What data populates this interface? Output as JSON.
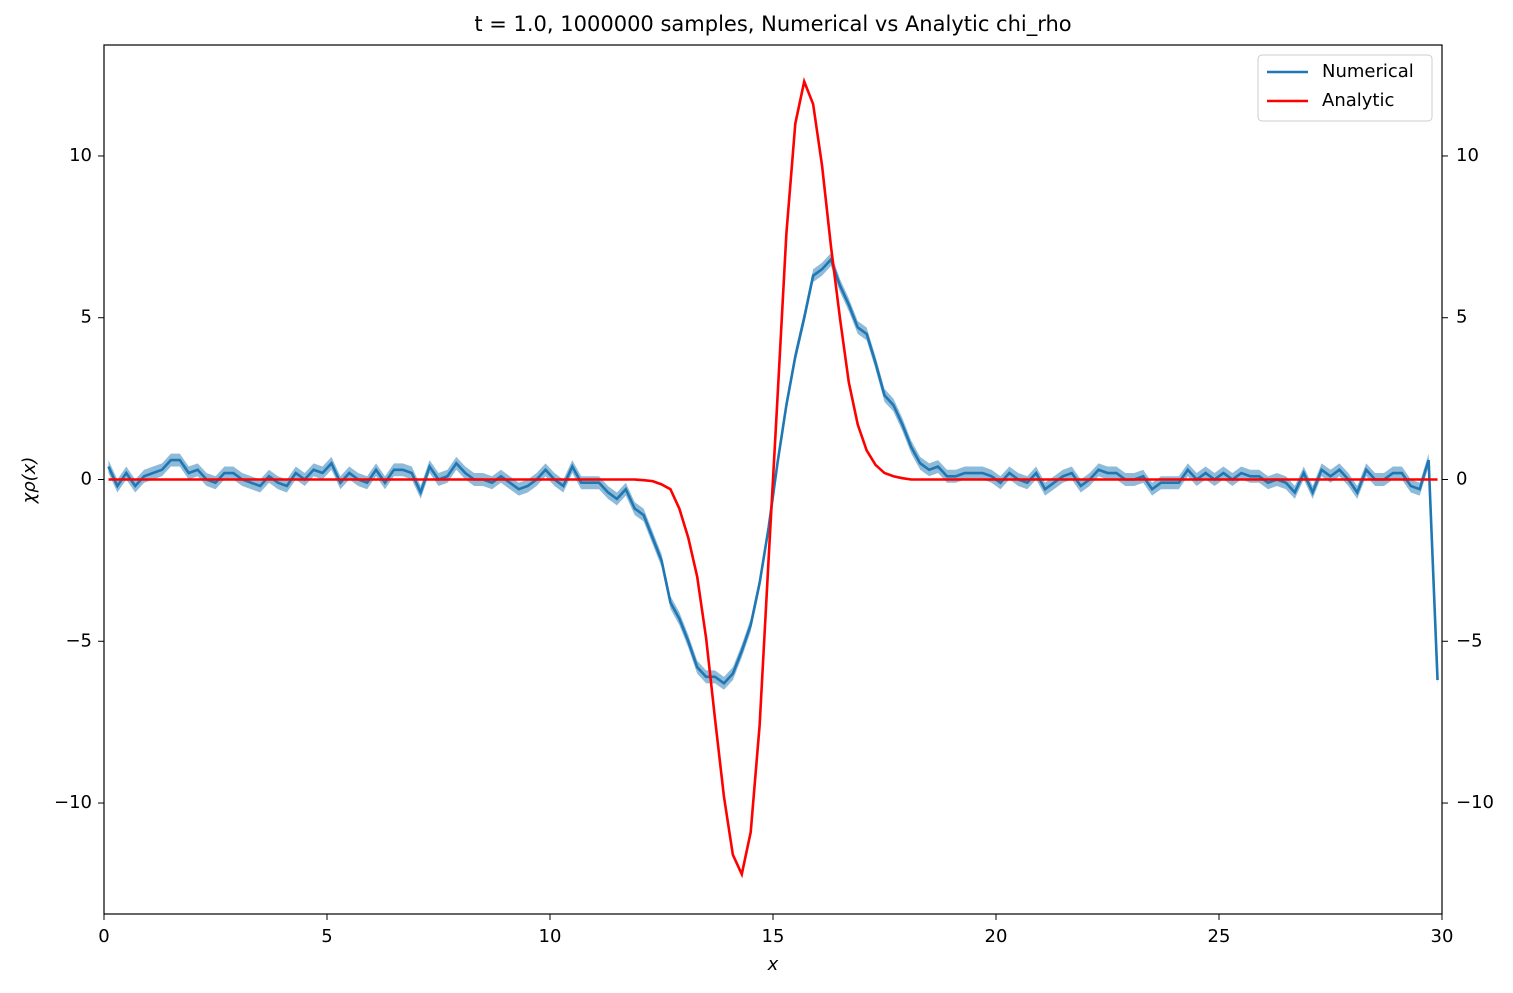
{
  "chart_data": {
    "type": "line",
    "title": "t = 1.0, 1000000 samples, Numerical vs Analytic chi_rho",
    "xlabel": "x",
    "ylabel": "χρ(x)",
    "x": [
      0.1,
      0.3,
      0.5,
      0.7,
      0.9,
      1.1,
      1.3,
      1.5,
      1.7,
      1.9,
      2.1,
      2.3,
      2.5,
      2.7,
      2.9,
      3.1,
      3.3,
      3.5,
      3.7,
      3.9,
      4.1,
      4.3,
      4.5,
      4.7,
      4.9,
      5.1,
      5.3,
      5.5,
      5.7,
      5.9,
      6.1,
      6.3,
      6.5,
      6.7,
      6.9,
      7.1,
      7.3,
      7.5,
      7.7,
      7.9,
      8.1,
      8.3,
      8.5,
      8.7,
      8.9,
      9.1,
      9.3,
      9.5,
      9.7,
      9.9,
      10.1,
      10.3,
      10.5,
      10.7,
      10.9,
      11.1,
      11.3,
      11.5,
      11.7,
      11.9,
      12.1,
      12.3,
      12.5,
      12.7,
      12.9,
      13.1,
      13.3,
      13.5,
      13.7,
      13.9,
      14.1,
      14.3,
      14.5,
      14.7,
      14.9,
      15.1,
      15.3,
      15.5,
      15.7,
      15.9,
      16.1,
      16.3,
      16.5,
      16.7,
      16.9,
      17.1,
      17.3,
      17.5,
      17.7,
      17.9,
      18.1,
      18.3,
      18.5,
      18.7,
      18.9,
      19.1,
      19.3,
      19.5,
      19.7,
      19.9,
      20.1,
      20.3,
      20.5,
      20.7,
      20.9,
      21.1,
      21.3,
      21.5,
      21.7,
      21.9,
      22.1,
      22.3,
      22.5,
      22.7,
      22.9,
      23.1,
      23.3,
      23.5,
      23.7,
      23.9,
      24.1,
      24.3,
      24.5,
      24.7,
      24.9,
      25.1,
      25.3,
      25.5,
      25.7,
      25.9,
      26.1,
      26.3,
      26.5,
      26.7,
      26.9,
      27.1,
      27.3,
      27.5,
      27.7,
      27.9,
      28.1,
      28.3,
      28.5,
      28.7,
      28.9,
      29.1,
      29.3,
      29.5,
      29.7,
      29.9
    ],
    "series": [
      {
        "name": "Numerical",
        "color": "#1f77b4",
        "band_color": "#1f77b4",
        "error": 0.2,
        "values": [
          0.4,
          -0.2,
          0.2,
          -0.2,
          0.1,
          0.2,
          0.3,
          0.6,
          0.6,
          0.2,
          0.3,
          0.0,
          -0.1,
          0.2,
          0.2,
          0.0,
          -0.1,
          -0.2,
          0.1,
          -0.1,
          -0.2,
          0.2,
          0.0,
          0.3,
          0.2,
          0.5,
          -0.1,
          0.2,
          0.0,
          -0.1,
          0.3,
          -0.1,
          0.3,
          0.3,
          0.2,
          -0.4,
          0.4,
          0.0,
          0.1,
          0.5,
          0.2,
          0.0,
          0.0,
          -0.1,
          0.1,
          -0.1,
          -0.3,
          -0.2,
          0.0,
          0.3,
          0.0,
          -0.2,
          0.4,
          -0.1,
          -0.1,
          -0.1,
          -0.4,
          -0.6,
          -0.3,
          -0.9,
          -1.1,
          -1.8,
          -2.5,
          -3.8,
          -4.3,
          -5.0,
          -5.8,
          -6.1,
          -6.1,
          -6.3,
          -6.0,
          -5.3,
          -4.5,
          -3.2,
          -1.5,
          0.5,
          2.3,
          3.8,
          5.0,
          6.3,
          6.5,
          6.8,
          6.0,
          5.4,
          4.7,
          4.5,
          3.6,
          2.6,
          2.3,
          1.7,
          1.0,
          0.5,
          0.3,
          0.4,
          0.1,
          0.1,
          0.2,
          0.2,
          0.2,
          0.1,
          -0.1,
          0.2,
          0.0,
          -0.1,
          0.2,
          -0.3,
          -0.1,
          0.1,
          0.2,
          -0.2,
          0.0,
          0.3,
          0.2,
          0.2,
          0.0,
          0.0,
          0.1,
          -0.3,
          -0.1,
          -0.1,
          -0.1,
          0.3,
          0.0,
          0.2,
          0.0,
          0.2,
          0.0,
          0.2,
          0.1,
          0.1,
          -0.1,
          0.0,
          -0.1,
          -0.4,
          0.2,
          -0.4,
          0.3,
          0.1,
          0.3,
          0.0,
          -0.4,
          0.3,
          0.0,
          0.0,
          0.2,
          0.2,
          -0.2,
          -0.3,
          0.6,
          -6.2
        ]
      },
      {
        "name": "Analytic",
        "color": "#ff0000",
        "values": [
          0,
          0,
          0,
          0,
          0,
          0,
          0,
          0,
          0,
          0,
          0,
          0,
          0,
          0,
          0,
          0,
          0,
          0,
          0,
          0,
          0,
          0,
          0,
          0,
          0,
          0,
          0,
          0,
          0,
          0,
          0,
          0,
          0,
          0,
          0,
          0,
          0,
          0,
          0,
          0,
          0,
          0,
          0,
          0,
          0,
          0,
          0,
          0,
          0,
          0,
          0,
          0,
          0,
          0,
          0,
          0,
          0,
          0,
          0,
          0,
          -0.02,
          -0.05,
          -0.15,
          -0.3,
          -0.9,
          -1.8,
          -3.0,
          -4.9,
          -7.4,
          -9.8,
          -11.6,
          -12.2,
          -10.9,
          -7.6,
          -2.5,
          2.5,
          7.6,
          11.0,
          12.3,
          11.6,
          9.7,
          7.2,
          5.0,
          3.0,
          1.7,
          0.9,
          0.45,
          0.2,
          0.1,
          0.04,
          0,
          0,
          0,
          0,
          0,
          0,
          0,
          0,
          0,
          0,
          0,
          0,
          0,
          0,
          0,
          0,
          0,
          0,
          0,
          0,
          0,
          0,
          0,
          0,
          0,
          0,
          0,
          0,
          0,
          0,
          0,
          0,
          0,
          0,
          0,
          0,
          0,
          0,
          0,
          0,
          0,
          0,
          0,
          0,
          0,
          0,
          0,
          0,
          0,
          0,
          0,
          0,
          0,
          0,
          0,
          0,
          0,
          0,
          0,
          0
        ]
      }
    ],
    "xlim": [
      0,
      30
    ],
    "xticks": [
      0,
      5,
      10,
      15,
      20,
      25,
      30
    ],
    "ylim": [
      -13.43,
      13.43
    ],
    "yticks": [
      {
        "value": -10,
        "label": "−10"
      },
      {
        "value": -5,
        "label": "−5"
      },
      0,
      5,
      10
    ],
    "y2lim": [
      -13.43,
      13.43
    ],
    "y2ticks": [
      {
        "value": -10,
        "label": "−10"
      },
      {
        "value": -5,
        "label": "−5"
      },
      0,
      5,
      10
    ],
    "legend": "upper right"
  }
}
